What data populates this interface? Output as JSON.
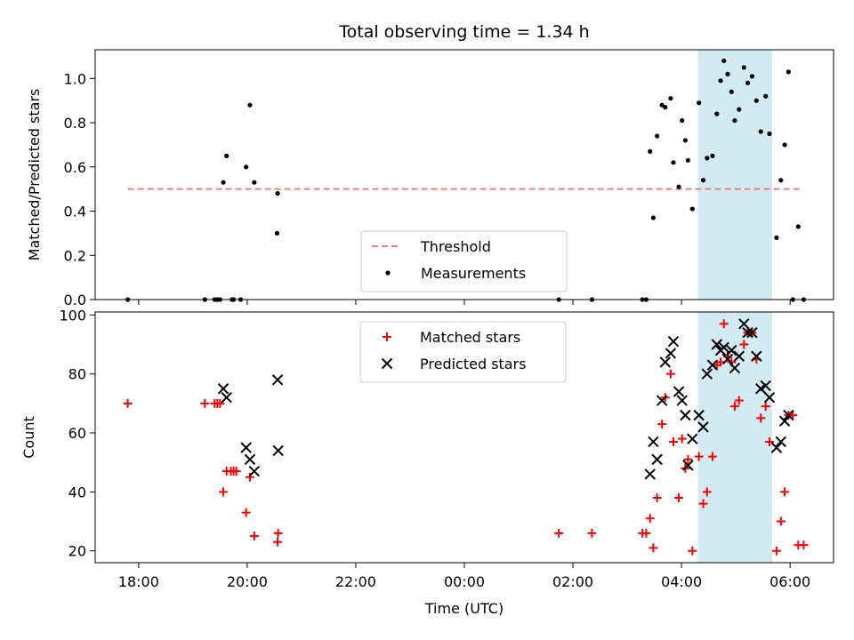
{
  "chart_data": {
    "type": "scatter",
    "title": "Total observing time = 1.34 h",
    "xlabel": "Time (UTC)",
    "xlim": [
      -6.8,
      6.8
    ],
    "xticks": [
      {
        "v": -6,
        "label": "18:00"
      },
      {
        "v": -4,
        "label": "20:00"
      },
      {
        "v": -2,
        "label": "22:00"
      },
      {
        "v": 0,
        "label": "00:00"
      },
      {
        "v": 2,
        "label": "02:00"
      },
      {
        "v": 4,
        "label": "04:00"
      },
      {
        "v": 6,
        "label": "06:00"
      }
    ],
    "shaded_span": [
      4.3,
      5.67
    ],
    "colors": {
      "threshold": "#f08080",
      "matched": "#ff0000",
      "predicted": "#000000",
      "span": "#add8e6"
    },
    "panels": [
      {
        "ylabel": "Matched/Predicted stars",
        "ylim": [
          0,
          1.13
        ],
        "yticks": [
          0.0,
          0.2,
          0.4,
          0.6,
          0.8,
          1.0
        ],
        "threshold": {
          "name": "Threshold",
          "y": 0.5,
          "x_range": [
            -6.2,
            6.2
          ]
        },
        "legend": {
          "position": "lower center",
          "entries": [
            "Threshold",
            "Measurements"
          ]
        },
        "series": [
          {
            "name": "Measurements",
            "marker": "dot",
            "points": [
              [
                -6.2,
                0.0
              ],
              [
                -4.78,
                0.0
              ],
              [
                -4.6,
                0.0
              ],
              [
                -4.55,
                0.0
              ],
              [
                -4.5,
                0.0
              ],
              [
                -4.28,
                0.0
              ],
              [
                -4.12,
                0.0
              ],
              [
                -4.25,
                0.0
              ],
              [
                -4.44,
                0.53
              ],
              [
                -4.38,
                0.65
              ],
              [
                -4.02,
                0.6
              ],
              [
                -3.95,
                0.88
              ],
              [
                -3.87,
                0.53
              ],
              [
                -3.44,
                0.48
              ],
              [
                -3.45,
                0.3
              ],
              [
                1.74,
                0.0
              ],
              [
                2.35,
                0.0
              ],
              [
                3.28,
                0.0
              ],
              [
                3.35,
                0.0
              ],
              [
                3.42,
                0.67
              ],
              [
                3.48,
                0.37
              ],
              [
                3.55,
                0.74
              ],
              [
                3.64,
                0.88
              ],
              [
                3.7,
                0.87
              ],
              [
                3.8,
                0.91
              ],
              [
                3.85,
                0.62
              ],
              [
                3.95,
                0.51
              ],
              [
                4.01,
                0.81
              ],
              [
                4.07,
                0.72
              ],
              [
                4.12,
                0.63
              ],
              [
                4.2,
                0.41
              ],
              [
                4.32,
                0.89
              ],
              [
                4.4,
                0.54
              ],
              [
                4.47,
                0.64
              ],
              [
                4.57,
                0.65
              ],
              [
                4.65,
                0.84
              ],
              [
                4.72,
                0.99
              ],
              [
                4.78,
                1.08
              ],
              [
                4.85,
                1.02
              ],
              [
                4.92,
                0.94
              ],
              [
                4.98,
                0.81
              ],
              [
                5.06,
                0.86
              ],
              [
                5.15,
                1.05
              ],
              [
                5.22,
                0.98
              ],
              [
                5.3,
                1.01
              ],
              [
                5.38,
                0.9
              ],
              [
                5.46,
                0.76
              ],
              [
                5.55,
                0.92
              ],
              [
                5.62,
                0.75
              ],
              [
                5.75,
                0.28
              ],
              [
                5.83,
                0.54
              ],
              [
                5.9,
                0.7
              ],
              [
                5.97,
                1.03
              ],
              [
                6.05,
                0.0
              ],
              [
                6.15,
                0.33
              ],
              [
                6.25,
                0.0
              ]
            ]
          }
        ]
      },
      {
        "ylabel": "Count",
        "ylim": [
          16,
          101
        ],
        "yticks": [
          20,
          40,
          60,
          80,
          100
        ],
        "legend": {
          "position": "upper center",
          "entries": [
            "Matched stars",
            "Predicted stars"
          ]
        },
        "series": [
          {
            "name": "Matched stars",
            "marker": "plus",
            "points": [
              [
                -6.2,
                70
              ],
              [
                -4.78,
                70
              ],
              [
                -4.6,
                70
              ],
              [
                -4.55,
                70
              ],
              [
                -4.5,
                70
              ],
              [
                -4.44,
                40
              ],
              [
                -4.38,
                47
              ],
              [
                -4.3,
                47
              ],
              [
                -4.25,
                47
              ],
              [
                -4.2,
                47
              ],
              [
                -4.02,
                33
              ],
              [
                -3.95,
                45
              ],
              [
                -3.87,
                25
              ],
              [
                -3.44,
                23
              ],
              [
                -3.43,
                26
              ],
              [
                1.74,
                26
              ],
              [
                2.35,
                26
              ],
              [
                3.28,
                26
              ],
              [
                3.35,
                26
              ],
              [
                3.42,
                31
              ],
              [
                3.48,
                21
              ],
              [
                3.55,
                38
              ],
              [
                3.64,
                63
              ],
              [
                3.7,
                72
              ],
              [
                3.8,
                80
              ],
              [
                3.85,
                57
              ],
              [
                3.95,
                38
              ],
              [
                4.01,
                58
              ],
              [
                4.07,
                48
              ],
              [
                4.12,
                51
              ],
              [
                4.2,
                20
              ],
              [
                4.32,
                52
              ],
              [
                4.4,
                36
              ],
              [
                4.47,
                40
              ],
              [
                4.57,
                52
              ],
              [
                4.65,
                83
              ],
              [
                4.72,
                84
              ],
              [
                4.78,
                97
              ],
              [
                4.85,
                86
              ],
              [
                4.92,
                84
              ],
              [
                4.98,
                69
              ],
              [
                5.06,
                71
              ],
              [
                5.15,
                90
              ],
              [
                5.22,
                94
              ],
              [
                5.3,
                94
              ],
              [
                5.38,
                85
              ],
              [
                5.46,
                65
              ],
              [
                5.55,
                69
              ],
              [
                5.62,
                57
              ],
              [
                5.75,
                20
              ],
              [
                5.83,
                30
              ],
              [
                5.9,
                40
              ],
              [
                5.97,
                66
              ],
              [
                6.05,
                66
              ],
              [
                6.15,
                22
              ],
              [
                6.25,
                22
              ]
            ]
          },
          {
            "name": "Predicted stars",
            "marker": "x",
            "points": [
              [
                -4.44,
                75
              ],
              [
                -4.38,
                72
              ],
              [
                -4.02,
                55
              ],
              [
                -3.95,
                51
              ],
              [
                -3.87,
                47
              ],
              [
                -3.44,
                78
              ],
              [
                -3.43,
                54
              ],
              [
                3.42,
                46
              ],
              [
                3.48,
                57
              ],
              [
                3.55,
                51
              ],
              [
                3.64,
                71
              ],
              [
                3.7,
                84
              ],
              [
                3.8,
                87
              ],
              [
                3.85,
                91
              ],
              [
                3.95,
                74
              ],
              [
                4.01,
                71
              ],
              [
                4.07,
                66
              ],
              [
                4.12,
                49
              ],
              [
                4.2,
                58
              ],
              [
                4.32,
                66
              ],
              [
                4.4,
                62
              ],
              [
                4.47,
                80
              ],
              [
                4.57,
                83
              ],
              [
                4.65,
                90
              ],
              [
                4.72,
                88
              ],
              [
                4.78,
                89
              ],
              [
                4.85,
                85
              ],
              [
                4.92,
                88
              ],
              [
                4.98,
                82
              ],
              [
                5.06,
                86
              ],
              [
                5.15,
                97
              ],
              [
                5.22,
                94
              ],
              [
                5.3,
                94
              ],
              [
                5.38,
                86
              ],
              [
                5.46,
                75
              ],
              [
                5.55,
                76
              ],
              [
                5.62,
                72
              ],
              [
                5.75,
                55
              ],
              [
                5.83,
                57
              ],
              [
                5.9,
                64
              ],
              [
                5.97,
                66
              ]
            ]
          }
        ]
      }
    ]
  }
}
